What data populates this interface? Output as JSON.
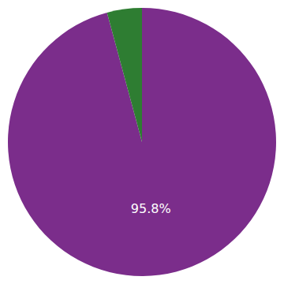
{
  "chart_data": {
    "type": "pie",
    "values": [
      95.8,
      4.2
    ],
    "colors": [
      "#7B2D8B",
      "#2E7D32"
    ],
    "value_labels": [
      "95.8%",
      null
    ]
  }
}
